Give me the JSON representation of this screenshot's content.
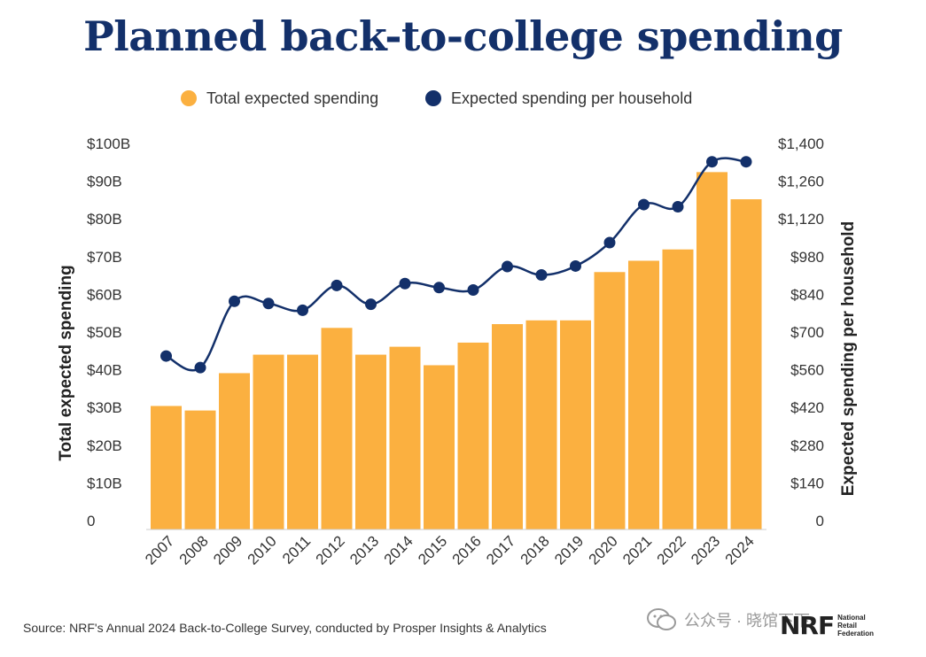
{
  "title": "Planned back-to-college spending",
  "source": "Source: NRF's Annual 2024 Back-to-College Survey, conducted by Prosper Insights & Analytics",
  "brand": {
    "mark": "NRF",
    "line1": "National",
    "line2": "Retail",
    "line3": "Federation"
  },
  "watermark": "公众号 · 晓馆下下",
  "colors": {
    "bar": "#fbb040",
    "line": "#13306a",
    "title": "#13306a",
    "text": "#333333"
  },
  "chart_data": {
    "type": "bar",
    "categories": [
      "2007",
      "2008",
      "2009",
      "2010",
      "2011",
      "2012",
      "2013",
      "2014",
      "2015",
      "2016",
      "2017",
      "2018",
      "2019",
      "2020",
      "2021",
      "2022",
      "2023",
      "2024"
    ],
    "series": [
      {
        "name": "Total expected spending",
        "type": "bar",
        "axis": "left",
        "values": [
          30.4,
          29.2,
          39.1,
          44.0,
          44.0,
          51.1,
          44.0,
          46.1,
          41.2,
          47.2,
          52.1,
          53.1,
          53.1,
          65.9,
          68.9,
          71.9,
          92.4,
          85.2
        ]
      },
      {
        "name": "Expected spending per household",
        "type": "line",
        "axis": "right",
        "values": [
          611,
          568,
          814,
          806,
          781,
          873,
          803,
          880,
          865,
          856,
          943,
          912,
          945,
          1032,
          1173,
          1165,
          1332,
          1332
        ]
      }
    ],
    "yleft": {
      "label": "Total expected spending",
      "lim": [
        0,
        100
      ],
      "ticks": [
        "0",
        "$10B",
        "$20B",
        "$30B",
        "$40B",
        "$50B",
        "$60B",
        "$70B",
        "$80B",
        "$90B",
        "$100B"
      ]
    },
    "yright": {
      "label": "Expected spending per household",
      "lim": [
        0,
        1400
      ],
      "ticks": [
        "0",
        "$140",
        "$280",
        "$420",
        "$560",
        "$700",
        "$840",
        "$980",
        "$1,120",
        "$1,260",
        "$1,400"
      ]
    },
    "legend": "top-center",
    "grid": false
  }
}
